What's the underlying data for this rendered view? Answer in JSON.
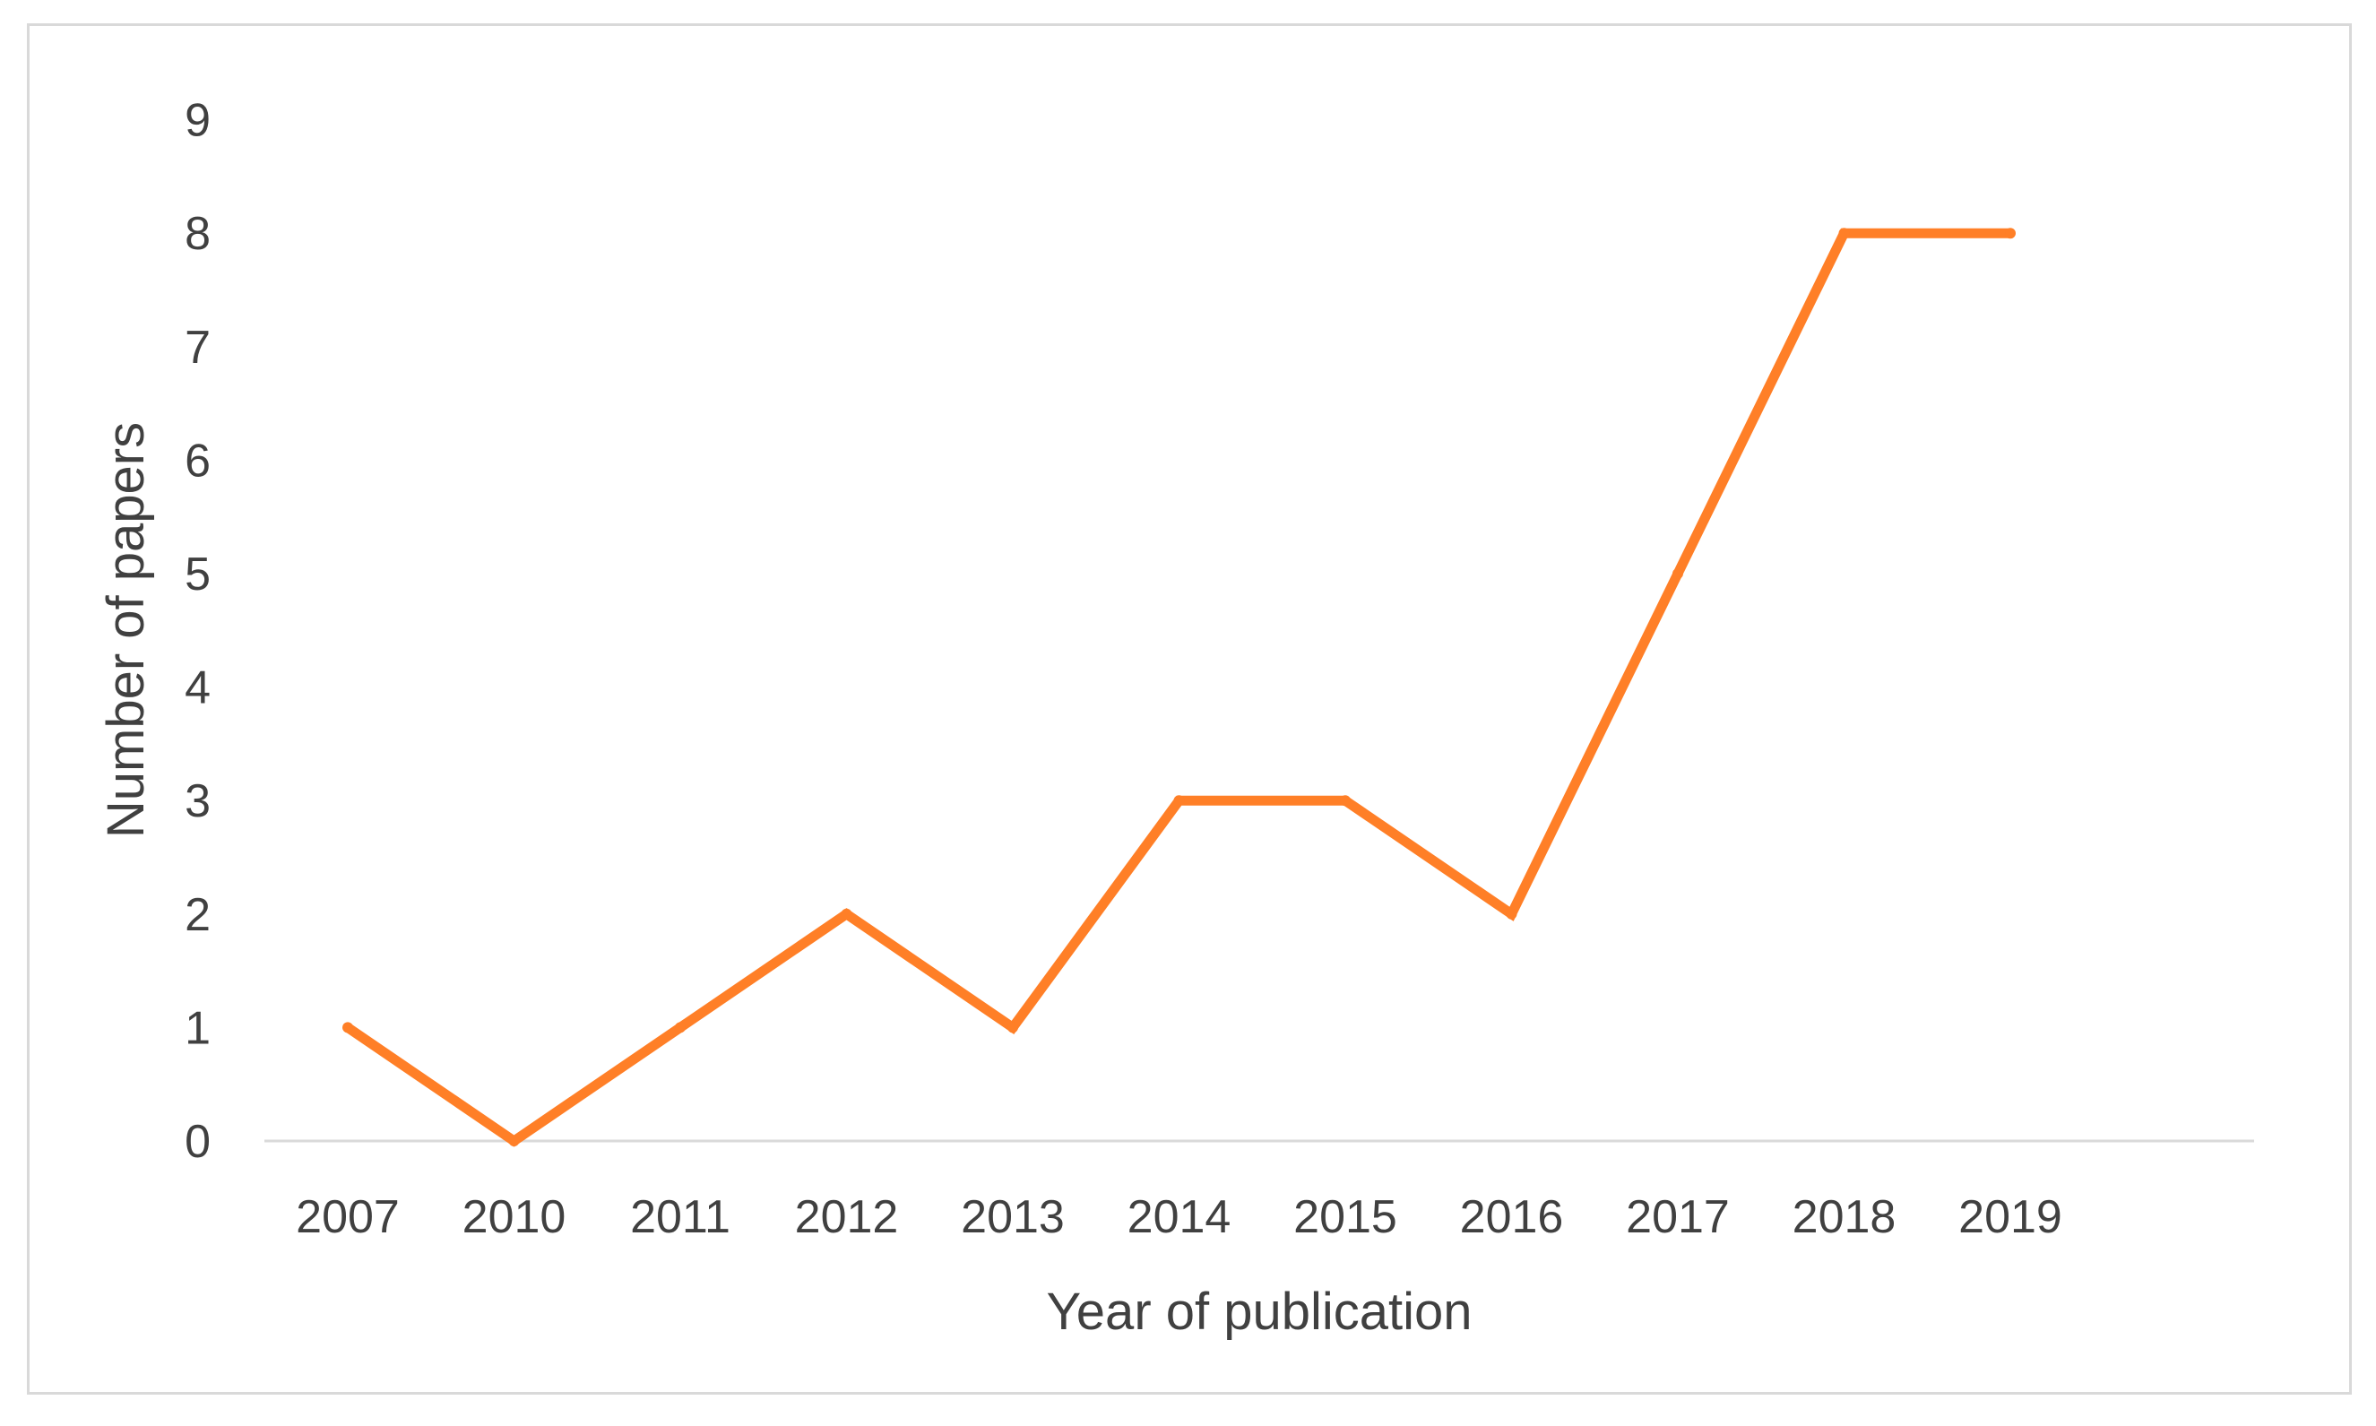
{
  "chart_data": {
    "type": "line",
    "title": "",
    "xlabel": "Year of publication",
    "ylabel": "Number of papers",
    "categories": [
      "2007",
      "2010",
      "2011",
      "2012",
      "2013",
      "2014",
      "2015",
      "2016",
      "2017",
      "2018",
      "2019"
    ],
    "series": [
      {
        "values": [
          1,
          0,
          1,
          2,
          1,
          3,
          3,
          2,
          5,
          8,
          8
        ],
        "color": "#ff7f27"
      }
    ],
    "yticks": [
      "0",
      "1",
      "2",
      "3",
      "4",
      "5",
      "6",
      "7",
      "8",
      "9"
    ],
    "ylim": [
      0,
      9
    ],
    "grid": false,
    "legend": "none",
    "colors": {
      "line": "#ff7f27",
      "axis": "#d9d9d9",
      "text": "#404040",
      "frame": "#d9d9d9"
    }
  }
}
